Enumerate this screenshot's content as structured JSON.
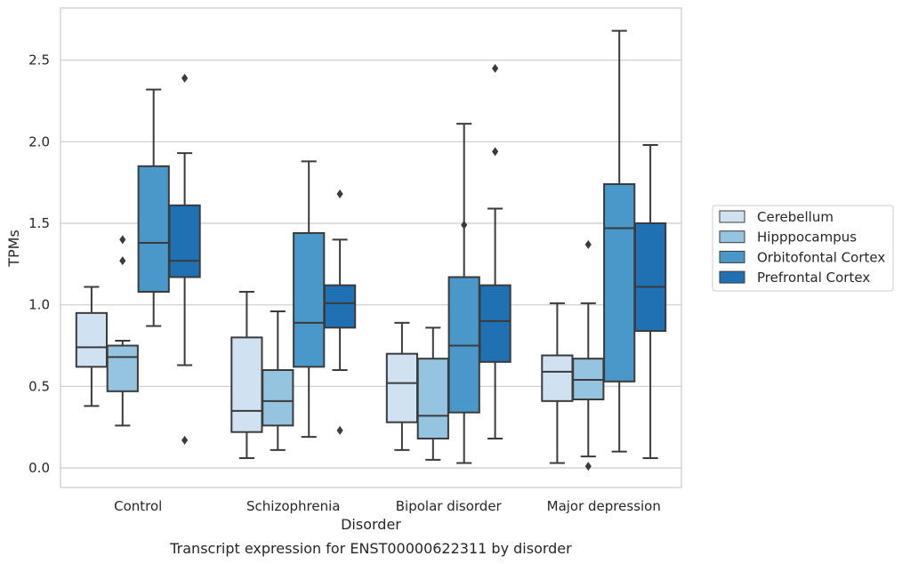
{
  "chart_data": {
    "type": "box",
    "caption": "Transcript expression for ENST00000622311 by disorder",
    "xlabel": "Disorder",
    "ylabel": "TPMs",
    "ylim": [
      -0.12,
      2.82
    ],
    "yticks": [
      0.0,
      0.5,
      1.0,
      1.5,
      2.0,
      2.5
    ],
    "ytick_labels": [
      "0.0",
      "0.5",
      "1.0",
      "1.5",
      "2.0",
      "2.5"
    ],
    "categories": [
      "Control",
      "Schizophrenia",
      "Bipolar disorder",
      "Major depression"
    ],
    "grid": "horizontal",
    "legend_position": "right-outside",
    "series": [
      {
        "name": "Cerebellum",
        "color": "#d0e1f2",
        "boxes": [
          {
            "whislo": 0.38,
            "q1": 0.62,
            "med": 0.74,
            "q3": 0.95,
            "whishi": 1.11,
            "fliers": []
          },
          {
            "whislo": 0.06,
            "q1": 0.22,
            "med": 0.35,
            "q3": 0.8,
            "whishi": 1.08,
            "fliers": []
          },
          {
            "whislo": 0.11,
            "q1": 0.28,
            "med": 0.52,
            "q3": 0.7,
            "whishi": 0.89,
            "fliers": []
          },
          {
            "whislo": 0.03,
            "q1": 0.41,
            "med": 0.59,
            "q3": 0.69,
            "whishi": 1.01,
            "fliers": []
          }
        ]
      },
      {
        "name": "Hipppocampus",
        "color": "#94c4df",
        "boxes": [
          {
            "whislo": 0.26,
            "q1": 0.47,
            "med": 0.68,
            "q3": 0.75,
            "whishi": 0.78,
            "fliers": [
              1.4,
              1.27
            ]
          },
          {
            "whislo": 0.11,
            "q1": 0.26,
            "med": 0.41,
            "q3": 0.6,
            "whishi": 0.96,
            "fliers": []
          },
          {
            "whislo": 0.05,
            "q1": 0.18,
            "med": 0.32,
            "q3": 0.67,
            "whishi": 0.86,
            "fliers": []
          },
          {
            "whislo": 0.07,
            "q1": 0.42,
            "med": 0.54,
            "q3": 0.67,
            "whishi": 1.01,
            "fliers": [
              1.37,
              0.01
            ]
          }
        ]
      },
      {
        "name": "Orbitofontal Cortex",
        "color": "#4a98c9",
        "boxes": [
          {
            "whislo": 0.87,
            "q1": 1.08,
            "med": 1.38,
            "q3": 1.85,
            "whishi": 2.32,
            "fliers": []
          },
          {
            "whislo": 0.19,
            "q1": 0.62,
            "med": 0.89,
            "q3": 1.44,
            "whishi": 1.88,
            "fliers": []
          },
          {
            "whislo": 0.03,
            "q1": 0.34,
            "med": 0.75,
            "q3": 1.17,
            "whishi": 2.11,
            "fliers": [
              1.49
            ]
          },
          {
            "whislo": 0.1,
            "q1": 0.53,
            "med": 1.47,
            "q3": 1.74,
            "whishi": 2.68,
            "fliers": []
          }
        ]
      },
      {
        "name": "Prefrontal Cortex",
        "color": "#2070b4",
        "boxes": [
          {
            "whislo": 0.63,
            "q1": 1.17,
            "med": 1.27,
            "q3": 1.61,
            "whishi": 1.93,
            "fliers": [
              2.39,
              0.17
            ]
          },
          {
            "whislo": 0.6,
            "q1": 0.86,
            "med": 1.01,
            "q3": 1.12,
            "whishi": 1.4,
            "fliers": [
              1.68,
              0.23
            ]
          },
          {
            "whislo": 0.18,
            "q1": 0.65,
            "med": 0.9,
            "q3": 1.12,
            "whishi": 1.59,
            "fliers": [
              2.45,
              1.94
            ]
          },
          {
            "whislo": 0.06,
            "q1": 0.84,
            "med": 1.11,
            "q3": 1.5,
            "whishi": 1.98,
            "fliers": []
          }
        ]
      }
    ]
  },
  "colors": {
    "edge": "#3b3b3b",
    "grid": "#cccccc",
    "frame": "#cccccc",
    "text": "#262626"
  }
}
